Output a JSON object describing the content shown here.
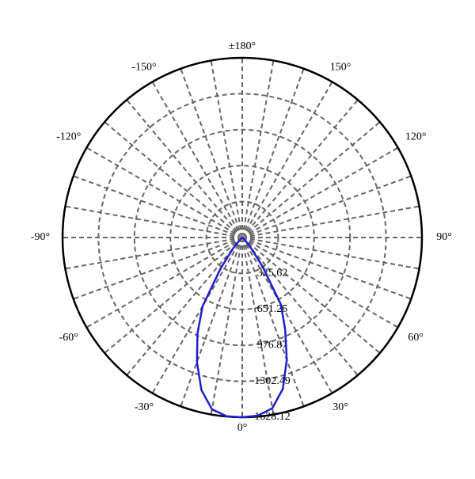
{
  "chart_data": {
    "type": "polar",
    "rlim": [
      0,
      1628.12
    ],
    "rticks": [
      325.62,
      651.25,
      976.87,
      1302.49,
      1628.12
    ],
    "thetaticks": [
      {
        "value": 180,
        "label": "±180°"
      },
      {
        "value": -150,
        "label": "-150°"
      },
      {
        "value": 150,
        "label": "150°"
      },
      {
        "value": -120,
        "label": "-120°"
      },
      {
        "value": 120,
        "label": "120°"
      },
      {
        "value": -90,
        "label": "-90°"
      },
      {
        "value": 90,
        "label": "90°"
      },
      {
        "value": -60,
        "label": "-60°"
      },
      {
        "value": 60,
        "label": "60°"
      },
      {
        "value": -30,
        "label": "-30°"
      },
      {
        "value": 30,
        "label": "30°"
      },
      {
        "value": 0,
        "label": "0°"
      }
    ],
    "minor_thetaticks": [
      10,
      20,
      40,
      50,
      70,
      80,
      100,
      110,
      130,
      140,
      160,
      170,
      -10,
      -20,
      -40,
      -50,
      -70,
      -80,
      -100,
      -110,
      -130,
      -140,
      -160,
      -170
    ],
    "grid": true,
    "series": [
      {
        "color": "#1f1fcc",
        "angles": [
          -90,
          -60,
          -50,
          -45,
          -40,
          -35,
          -30,
          -25,
          -20,
          -15,
          -10,
          -5,
          0,
          5,
          10,
          15,
          20,
          25,
          30,
          35,
          40,
          45,
          50,
          60,
          90
        ],
        "values": [
          0,
          5,
          15,
          40,
          130,
          340,
          720,
          960,
          1200,
          1430,
          1580,
          1625,
          1628,
          1620,
          1570,
          1420,
          1180,
          920,
          700,
          320,
          120,
          40,
          15,
          5,
          0
        ]
      }
    ]
  }
}
